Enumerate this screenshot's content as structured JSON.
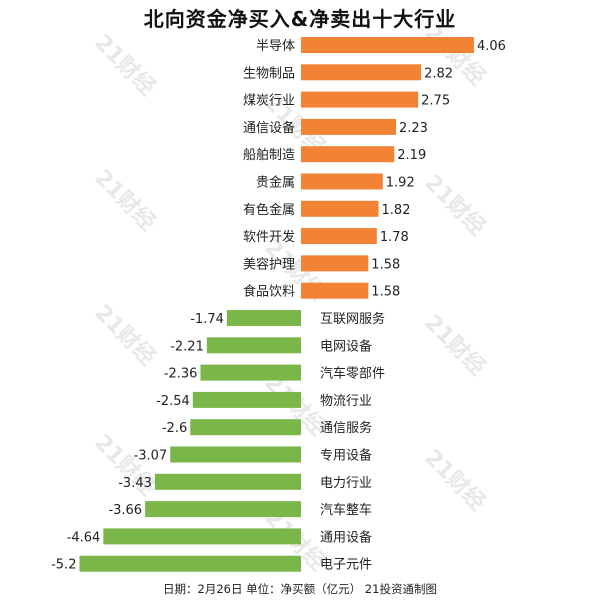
{
  "title": "北向资金净买入&净卖出十大行业",
  "footnote": "日期：2月26日 单位：净买额（亿元） 21投资通制图",
  "watermark": "21财经",
  "chart_data": {
    "type": "bar",
    "orientation": "horizontal",
    "categories": [
      "半导体",
      "生物制品",
      "煤炭行业",
      "通信设备",
      "船舶制造",
      "贵金属",
      "有色金属",
      "软件开发",
      "美容护理",
      "食品饮料",
      "互联网服务",
      "电网设备",
      "汽车零部件",
      "物流行业",
      "通信服务",
      "专用设备",
      "电力行业",
      "汽车整车",
      "通用设备",
      "电子元件"
    ],
    "values": [
      4.06,
      2.82,
      2.75,
      2.23,
      2.19,
      1.92,
      1.82,
      1.78,
      1.58,
      1.58,
      -1.74,
      -2.21,
      -2.36,
      -2.54,
      -2.6,
      -3.07,
      -3.43,
      -3.66,
      -4.64,
      -5.2
    ],
    "value_labels": [
      "4.06",
      "2.82",
      "2.75",
      "2.23",
      "2.19",
      "1.92",
      "1.82",
      "1.78",
      "1.58",
      "1.58",
      "-1.74",
      "-2.21",
      "-2.36",
      "-2.54",
      "-2.6",
      "-3.07",
      "-3.43",
      "-3.66",
      "-4.64",
      "-5.2"
    ],
    "colors": {
      "positive": "#f28335",
      "negative": "#7ab648"
    },
    "grid": false,
    "legend": "none"
  }
}
